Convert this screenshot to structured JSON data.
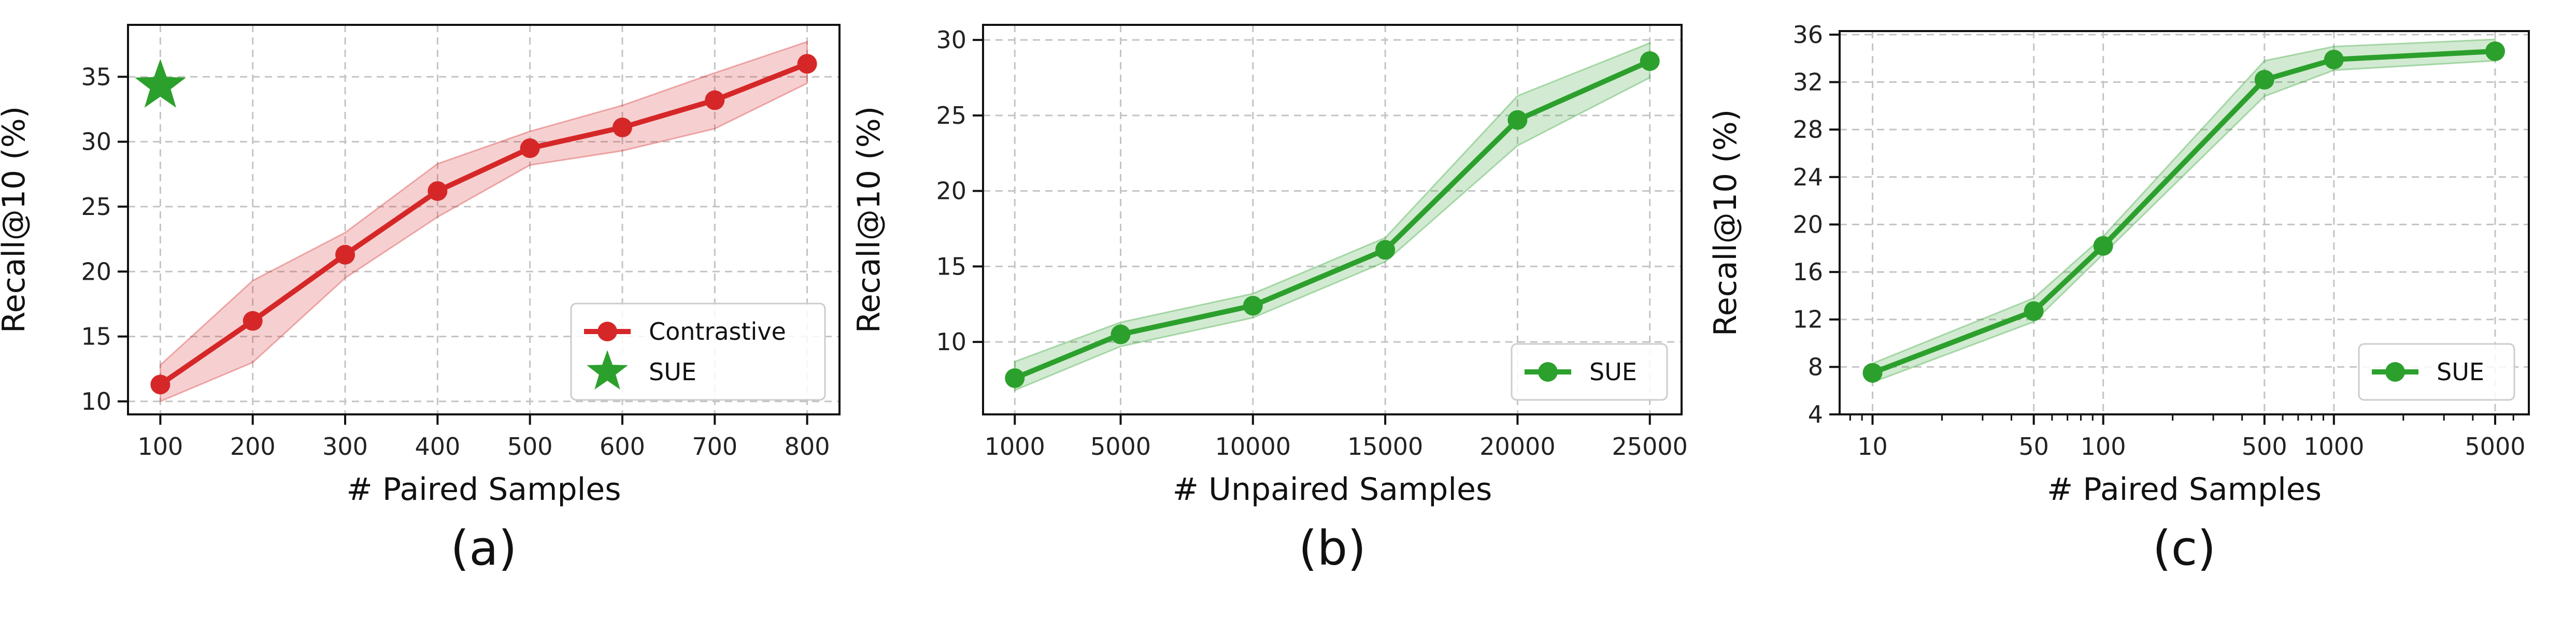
{
  "chart_data": [
    {
      "type": "line",
      "caption": "(a)",
      "xlabel": "# Paired Samples",
      "ylabel": "Recall@10 (%)",
      "x_scale": "linear",
      "xlim": [
        65,
        835
      ],
      "ylim": [
        9,
        39
      ],
      "x_ticks": [
        100,
        200,
        300,
        400,
        500,
        600,
        700,
        800
      ],
      "y_ticks": [
        10,
        15,
        20,
        25,
        30,
        35
      ],
      "grid": true,
      "legend_position": "lower-right",
      "series": [
        {
          "name": "Contrastive",
          "marker": "circle",
          "color": "#d62728",
          "x": [
            100,
            200,
            300,
            400,
            500,
            600,
            700,
            800
          ],
          "values": [
            11.3,
            16.2,
            21.3,
            26.2,
            29.5,
            31.1,
            33.2,
            36.0
          ],
          "band_low": [
            10.0,
            13.0,
            19.5,
            24.2,
            28.2,
            29.3,
            31.0,
            34.5
          ],
          "band_high": [
            12.8,
            19.3,
            23.0,
            28.3,
            30.8,
            32.8,
            35.3,
            37.7
          ]
        },
        {
          "name": "SUE",
          "marker": "star",
          "color": "#2ca02c",
          "x": [
            100
          ],
          "values": [
            34.3
          ]
        }
      ]
    },
    {
      "type": "line",
      "caption": "(b)",
      "xlabel": "# Unpaired Samples",
      "ylabel": "Recall@10 (%)",
      "x_scale": "linear",
      "xlim": [
        -200,
        26200
      ],
      "ylim": [
        5.2,
        31.0
      ],
      "x_ticks": [
        1000,
        5000,
        10000,
        15000,
        20000,
        25000
      ],
      "y_ticks": [
        10,
        15,
        20,
        25,
        30
      ],
      "grid": true,
      "legend_position": "lower-right",
      "series": [
        {
          "name": "SUE",
          "marker": "circle",
          "color": "#2ca02c",
          "x": [
            1000,
            5000,
            10000,
            15000,
            20000,
            25000
          ],
          "values": [
            7.6,
            10.5,
            12.4,
            16.1,
            24.7,
            28.6
          ],
          "band_low": [
            6.8,
            9.7,
            11.6,
            15.3,
            23.0,
            27.5
          ],
          "band_high": [
            8.7,
            11.3,
            13.2,
            16.9,
            26.3,
            29.8
          ]
        }
      ]
    },
    {
      "type": "line",
      "caption": "(c)",
      "xlabel": "# Paired Samples",
      "ylabel": "Recall@10 (%)",
      "x_scale": "log",
      "xlim": [
        7.2,
        7000
      ],
      "ylim": [
        4,
        36.3
      ],
      "x_ticks": [
        10,
        50,
        100,
        500,
        1000,
        5000
      ],
      "y_ticks": [
        4,
        8,
        12,
        16,
        20,
        24,
        28,
        32,
        36
      ],
      "grid": true,
      "legend_position": "lower-right",
      "series": [
        {
          "name": "SUE",
          "marker": "circle",
          "color": "#2ca02c",
          "x": [
            10,
            50,
            100,
            500,
            1000,
            5000
          ],
          "values": [
            7.5,
            12.7,
            18.2,
            32.2,
            33.9,
            34.6
          ],
          "band_low": [
            6.7,
            11.8,
            17.5,
            30.8,
            33.0,
            33.8
          ],
          "band_high": [
            8.3,
            13.8,
            19.0,
            33.8,
            35.0,
            35.6
          ]
        }
      ]
    }
  ]
}
